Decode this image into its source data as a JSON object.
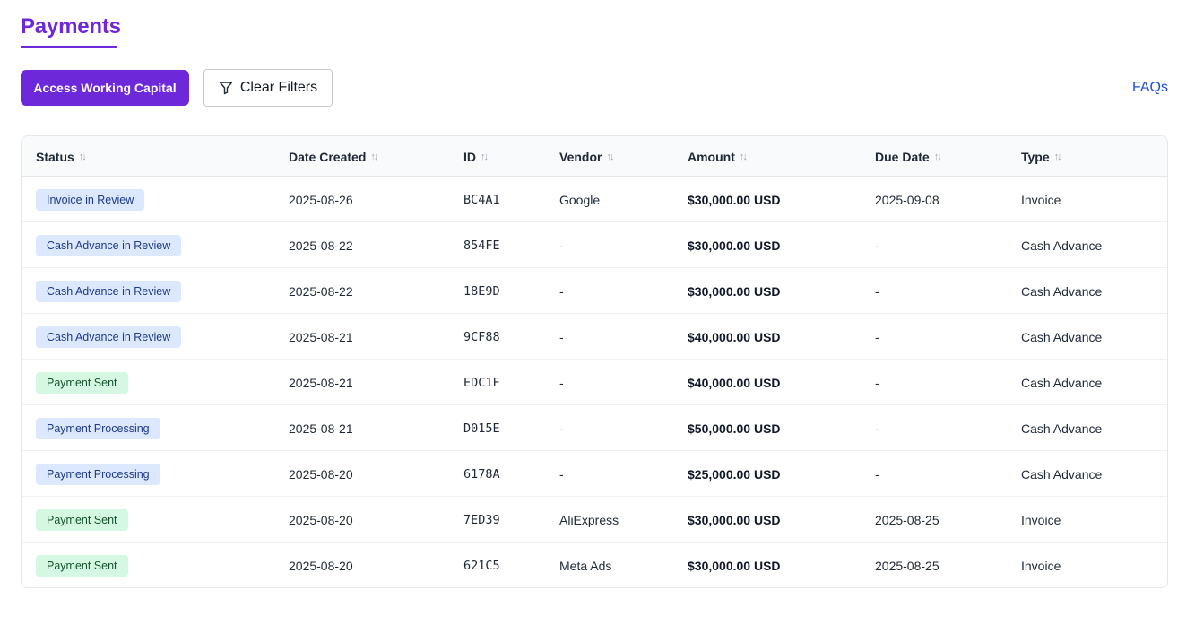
{
  "page": {
    "title": "Payments",
    "accent_color": "#6d28d9",
    "link_color": "#1d4ed8"
  },
  "toolbar": {
    "primary_label": "Access Working Capital",
    "clear_filters_label": "Clear Filters",
    "clear_filters_icon": "filter-icon",
    "faqs_label": "FAQs"
  },
  "table": {
    "sort_icon": "sort-arrows-icon",
    "columns": [
      "Status",
      "Date Created",
      "ID",
      "Vendor",
      "Amount",
      "Due Date",
      "Type"
    ],
    "rows": [
      {
        "status": "Invoice in Review",
        "status_color": "blue",
        "date_created": "2025-08-26",
        "id": "BC4A1",
        "vendor": "Google",
        "amount": "$30,000.00 USD",
        "due_date": "2025-09-08",
        "type": "Invoice"
      },
      {
        "status": "Cash Advance in Review",
        "status_color": "blue",
        "date_created": "2025-08-22",
        "id": "854FE",
        "vendor": "-",
        "amount": "$30,000.00 USD",
        "due_date": "-",
        "type": "Cash Advance"
      },
      {
        "status": "Cash Advance in Review",
        "status_color": "blue",
        "date_created": "2025-08-22",
        "id": "18E9D",
        "vendor": "-",
        "amount": "$30,000.00 USD",
        "due_date": "-",
        "type": "Cash Advance"
      },
      {
        "status": "Cash Advance in Review",
        "status_color": "blue",
        "date_created": "2025-08-21",
        "id": "9CF88",
        "vendor": "-",
        "amount": "$40,000.00 USD",
        "due_date": "-",
        "type": "Cash Advance"
      },
      {
        "status": "Payment Sent",
        "status_color": "green",
        "date_created": "2025-08-21",
        "id": "EDC1F",
        "vendor": "-",
        "amount": "$40,000.00 USD",
        "due_date": "-",
        "type": "Cash Advance"
      },
      {
        "status": "Payment Processing",
        "status_color": "blue",
        "date_created": "2025-08-21",
        "id": "D015E",
        "vendor": "-",
        "amount": "$50,000.00 USD",
        "due_date": "-",
        "type": "Cash Advance"
      },
      {
        "status": "Payment Processing",
        "status_color": "blue",
        "date_created": "2025-08-20",
        "id": "6178A",
        "vendor": "-",
        "amount": "$25,000.00 USD",
        "due_date": "-",
        "type": "Cash Advance"
      },
      {
        "status": "Payment Sent",
        "status_color": "green",
        "date_created": "2025-08-20",
        "id": "7ED39",
        "vendor": "AliExpress",
        "amount": "$30,000.00 USD",
        "due_date": "2025-08-25",
        "type": "Invoice"
      },
      {
        "status": "Payment Sent",
        "status_color": "green",
        "date_created": "2025-08-20",
        "id": "621C5",
        "vendor": "Meta Ads",
        "amount": "$30,000.00 USD",
        "due_date": "2025-08-25",
        "type": "Invoice"
      }
    ]
  }
}
